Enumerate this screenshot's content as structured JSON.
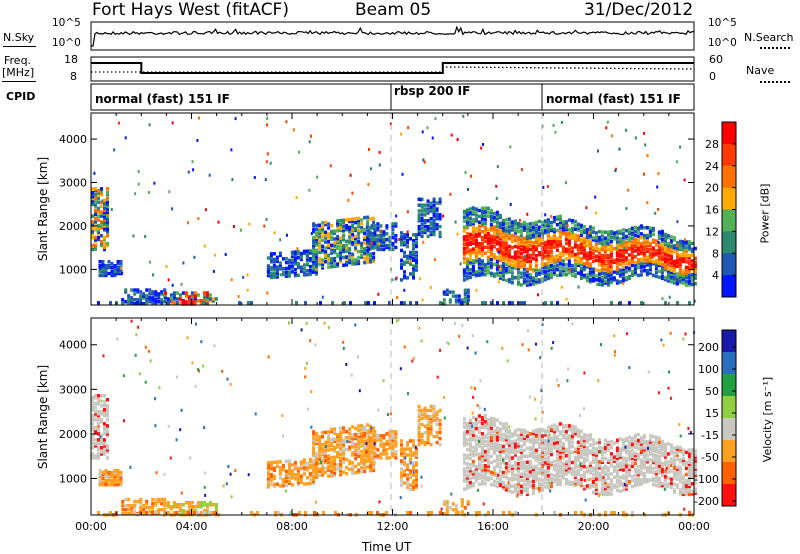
{
  "header": {
    "station": "Fort Hays West (fitACF)",
    "beam": "Beam 05",
    "date": "31/Dec/2012"
  },
  "left_labels": {
    "nsky": "N.Sky",
    "freq": "Freq.",
    "freq_unit": "[MHz]",
    "cpid": "CPID"
  },
  "right_labels": {
    "nsearch": "N.Search",
    "nave": "Nave"
  },
  "noise_axis": {
    "top": "10^5",
    "bottom": "10^0"
  },
  "freq_axis": {
    "top": "18",
    "bottom": "8"
  },
  "nave_axis": {
    "top": "60",
    "bottom": "0"
  },
  "cpid_segments": [
    {
      "label": "normal (fast) 151 IF",
      "start_hour": 0
    },
    {
      "label": "rbsp 200 IF",
      "start_hour": 12
    },
    {
      "label": "normal (fast) 151 IF",
      "start_hour": 18
    }
  ],
  "chart_data": [
    {
      "type": "heatmap",
      "name": "power",
      "ylabel": "Slant Range [km]",
      "xlabel": "",
      "xlim": [
        0,
        24
      ],
      "ylim": [
        180,
        4600
      ],
      "yticks": [
        "1000",
        "2000",
        "3000",
        "4000"
      ],
      "colorbar_label": "Power [dB]",
      "colorbar_ticks": [
        "4",
        "8",
        "12",
        "16",
        "20",
        "24",
        "28"
      ],
      "colorbar_range": [
        0,
        32
      ],
      "colors": [
        "#0016ff",
        "#1f58b5",
        "#2c8a6e",
        "#52b156",
        "#ffaa00",
        "#ff7200",
        "#ff3a00",
        "#ff0000"
      ]
    },
    {
      "type": "heatmap",
      "name": "velocity",
      "ylabel": "Slant Range [km]",
      "xlabel": "Time UT",
      "xlim": [
        0,
        24
      ],
      "ylim": [
        180,
        4600
      ],
      "yticks": [
        "1000",
        "2000",
        "3000",
        "4000"
      ],
      "xticks": [
        "00:00",
        "04:00",
        "08:00",
        "12:00",
        "16:00",
        "20:00",
        "00:00"
      ],
      "colorbar_label": "Velocity [m s⁻¹]",
      "colorbar_ticks": [
        "200",
        "100",
        "50",
        "15",
        "-15",
        "-50",
        "-100",
        "-200"
      ],
      "colors": [
        "#1a1aa8",
        "#2a6ec0",
        "#20a040",
        "#8fd040",
        "#c8c8c0",
        "#ffa020",
        "#ff6000",
        "#ff1010"
      ]
    }
  ]
}
